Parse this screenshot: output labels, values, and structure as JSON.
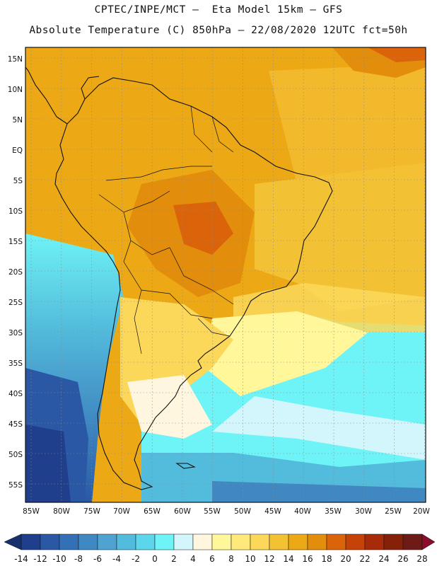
{
  "header": {
    "line1": "CPTEC/INPE/MCT –  Eta Model 15km – GFS",
    "line2": "Absolute Temperature (C) 850hPa – 22/08/2020 12UTC fct=50h"
  },
  "map": {
    "lat_labels": [
      "15N",
      "10N",
      "5N",
      "EQ",
      "5S",
      "10S",
      "15S",
      "20S",
      "25S",
      "30S",
      "35S",
      "40S",
      "45S",
      "50S",
      "55S"
    ],
    "lon_labels": [
      "85W",
      "80W",
      "75W",
      "70W",
      "65W",
      "60W",
      "55W",
      "50W",
      "45W",
      "40W",
      "35W",
      "30W",
      "25W",
      "20W"
    ]
  },
  "colorbar": {
    "colors": [
      "#1f3f8c",
      "#2a58a4",
      "#3370b5",
      "#3f88c2",
      "#4ea3d0",
      "#53bcdc",
      "#5cd6ea",
      "#6ef3f6",
      "#d2f6fb",
      "#fff6df",
      "#fff79a",
      "#ffe97a",
      "#fcd85a",
      "#f3c134",
      "#eca915",
      "#e38d0d",
      "#db640b",
      "#c54308",
      "#a72b09",
      "#862109",
      "#6e1a16"
    ],
    "labels": [
      "-14",
      "-12",
      "-10",
      "-8",
      "-6",
      "-4",
      "-2",
      "0",
      "2",
      "4",
      "6",
      "8",
      "10",
      "12",
      "14",
      "16",
      "18",
      "20",
      "22",
      "24",
      "26",
      "28"
    ]
  }
}
